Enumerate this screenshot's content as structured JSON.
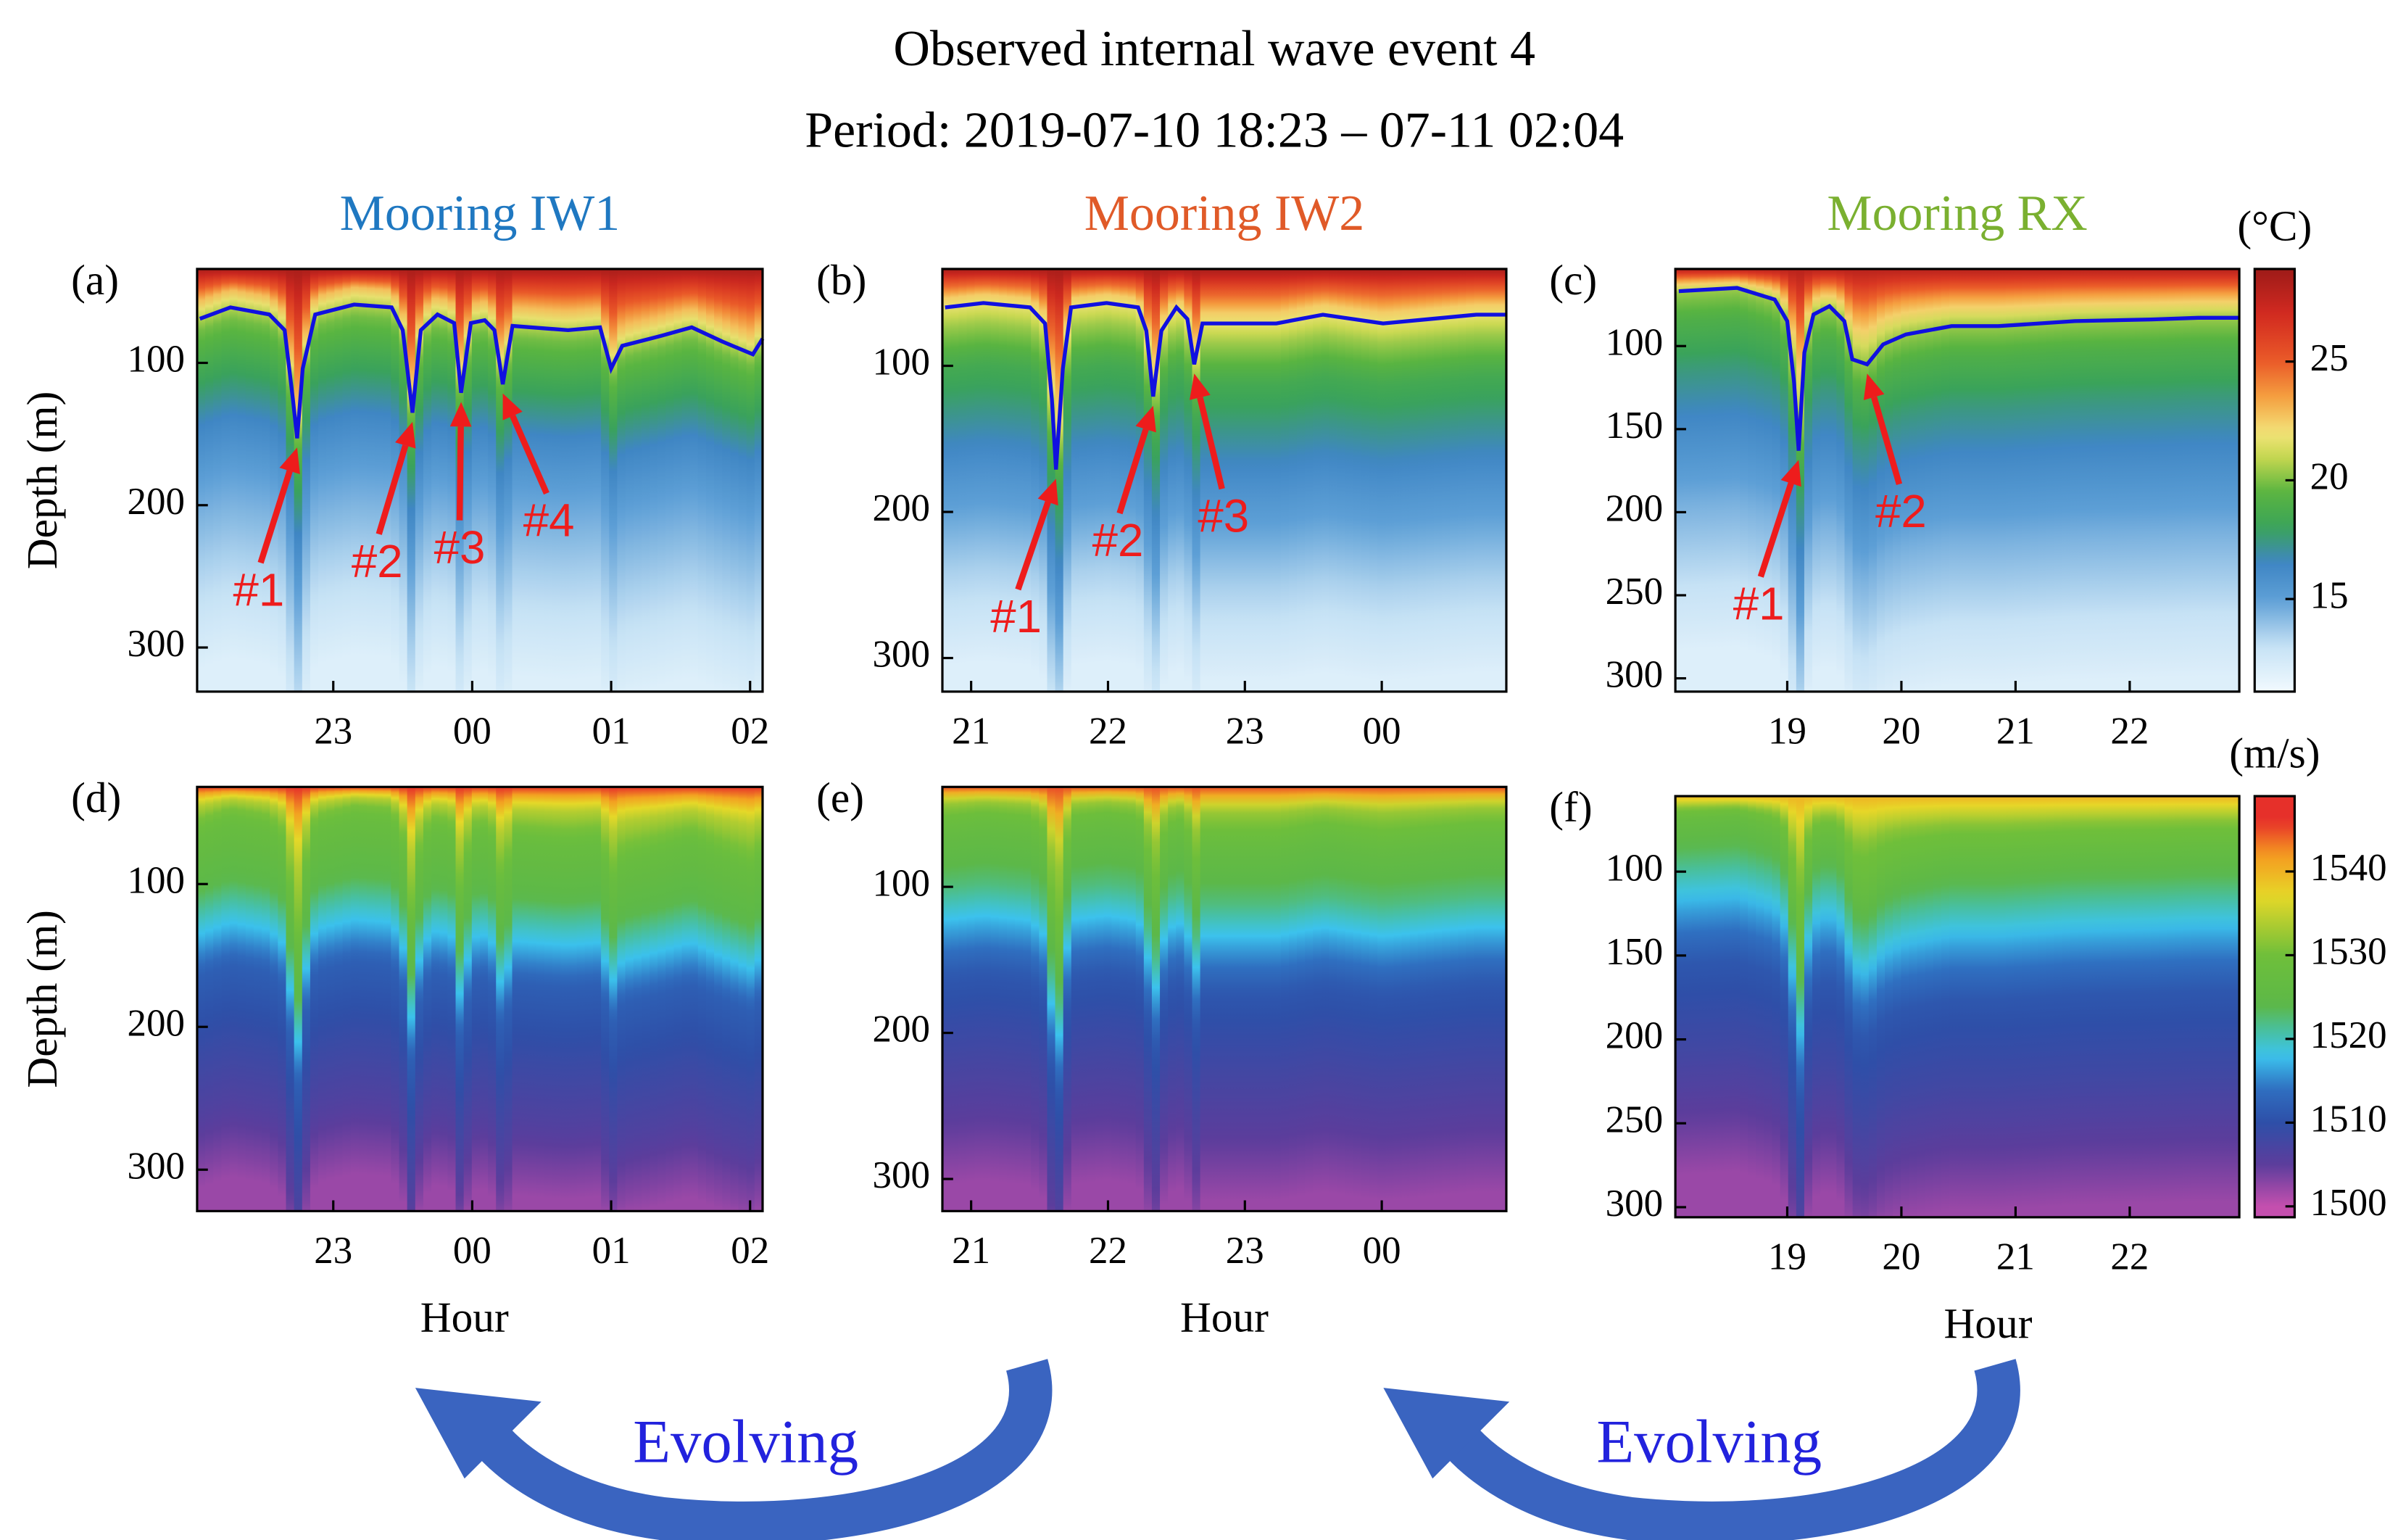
{
  "title": "Observed internal wave event 4",
  "subtitle": "Period: 2019-07-10 18:23 – 07-11 02:04",
  "evolving": [
    "Evolving",
    "Evolving"
  ],
  "chart_data": [
    {
      "type": "heatmap",
      "panel": "(a)",
      "column_title": "Mooring IW1",
      "title_color": "#1f78c1",
      "ylabel": "Depth (m)",
      "xlim": [
        22.02,
        26.09
      ],
      "xticks": [
        23,
        {
          "value": 24,
          "label": "00"
        },
        {
          "value": 25,
          "label": "01"
        },
        {
          "value": 26,
          "label": "02"
        }
      ],
      "ylim": [
        34,
        331
      ],
      "y_reversed": true,
      "yticks": [
        100,
        200,
        300
      ],
      "colormap": "temperature",
      "profile": {
        "depth": [
          34,
          50,
          70,
          90,
          120,
          160,
          200,
          260,
          331
        ],
        "values": [
          28.5,
          26,
          23,
          20,
          18.5,
          16.5,
          15,
          13.5,
          12
        ]
      },
      "isotherm": {
        "color": "#1010e0",
        "x": [
          22.04,
          22.26,
          22.54,
          22.65,
          22.71,
          22.74,
          22.78,
          22.87,
          23.15,
          23.42,
          23.5,
          23.57,
          23.63,
          23.75,
          23.87,
          23.92,
          23.99,
          24.09,
          24.16,
          24.22,
          24.29,
          24.42,
          24.69,
          24.92,
          25.0,
          25.08,
          25.36,
          25.58,
          25.8,
          26.02,
          26.09
        ],
        "y": [
          69,
          61,
          66,
          77,
          126,
          153,
          104,
          66,
          59,
          61,
          77,
          135,
          77,
          66,
          72,
          121,
          72,
          70,
          77,
          115,
          74,
          75,
          77,
          75,
          104,
          88,
          81,
          75,
          85,
          94,
          83
        ]
      },
      "annotations": [
        {
          "text": "#1",
          "x": 22.74,
          "y": 153
        },
        {
          "text": "#2",
          "x": 23.57,
          "y": 135
        },
        {
          "text": "#3",
          "x": 23.92,
          "y": 121
        },
        {
          "text": "#4",
          "x": 24.22,
          "y": 115
        }
      ]
    },
    {
      "type": "heatmap",
      "panel": "(b)",
      "column_title": "Mooring IW2",
      "title_color": "#e05a28",
      "xlim": [
        20.79,
        24.91
      ],
      "xticks": [
        21,
        22,
        23,
        {
          "value": 24,
          "label": "00"
        }
      ],
      "ylim": [
        33.7,
        323
      ],
      "y_reversed": true,
      "yticks": [
        100,
        200,
        300
      ],
      "colormap": "temperature",
      "profile": {
        "depth": [
          34,
          50,
          70,
          90,
          120,
          160,
          200,
          260,
          323
        ],
        "values": [
          28.5,
          25.5,
          22.5,
          20.5,
          18.5,
          17,
          15.5,
          13.5,
          12
        ]
      },
      "isotherm": {
        "color": "#1010e0",
        "x": [
          20.81,
          21.09,
          21.43,
          21.54,
          21.59,
          21.62,
          21.67,
          21.73,
          21.99,
          22.22,
          22.28,
          22.33,
          22.39,
          22.5,
          22.58,
          22.63,
          22.69,
          22.89,
          23.23,
          23.57,
          24.01,
          24.35,
          24.69,
          24.91
        ],
        "y": [
          60,
          57,
          60,
          71,
          123,
          171,
          102,
          60,
          57,
          60,
          76,
          121,
          76,
          60,
          68,
          99,
          71,
          71,
          71,
          65,
          71,
          68,
          65,
          65
        ]
      },
      "annotations": [
        {
          "text": "#1",
          "x": 21.62,
          "y": 171
        },
        {
          "text": "#2",
          "x": 22.33,
          "y": 121
        },
        {
          "text": "#3",
          "x": 22.63,
          "y": 99
        }
      ]
    },
    {
      "type": "heatmap",
      "panel": "(c)",
      "column_title": "Mooring RX",
      "title_color": "#7ab030",
      "xlim": [
        18.02,
        22.96
      ],
      "xticks": [
        19,
        20,
        21,
        22
      ],
      "ylim": [
        53.6,
        308
      ],
      "y_reversed": true,
      "yticks": [
        100,
        150,
        200,
        250,
        300
      ],
      "colormap": "temperature",
      "profile": {
        "depth": [
          54,
          70,
          90,
          110,
          140,
          180,
          220,
          270,
          308
        ],
        "values": [
          28,
          24,
          20.5,
          19,
          17.5,
          16,
          14.5,
          13,
          12
        ]
      },
      "isotherm": {
        "color": "#1010e0",
        "x": [
          18.05,
          18.56,
          18.89,
          19.0,
          19.06,
          19.1,
          19.15,
          19.23,
          19.37,
          19.5,
          19.57,
          19.7,
          19.84,
          20.04,
          20.44,
          20.85,
          21.52,
          22.19,
          22.6,
          22.96
        ],
        "y": [
          67,
          65,
          72,
          85,
          122,
          163,
          104,
          81,
          76,
          85,
          108,
          111,
          99,
          93,
          88,
          88,
          85,
          84,
          83,
          83
        ]
      },
      "annotations": [
        {
          "text": "#1",
          "x": 19.1,
          "y": 163
        },
        {
          "text": "#2",
          "x": 19.7,
          "y": 111
        }
      ],
      "colorbar": {
        "label": "(°C)",
        "clim": [
          11.1,
          28.9
        ],
        "ticks": [
          15,
          20,
          25
        ]
      }
    },
    {
      "type": "heatmap",
      "panel": "(d)",
      "ylabel": "Depth (m)",
      "xlabel": "Hour",
      "xlim": [
        22.02,
        26.09
      ],
      "xticks": [
        23,
        {
          "value": 24,
          "label": "00"
        },
        {
          "value": 25,
          "label": "01"
        },
        {
          "value": 26,
          "label": "02"
        }
      ],
      "ylim": [
        32,
        329
      ],
      "y_reversed": true,
      "yticks": [
        100,
        200,
        300
      ],
      "colormap": "sound",
      "profile": {
        "depth": [
          32,
          50,
          80,
          120,
          150,
          180,
          230,
          280,
          329
        ],
        "values": [
          1546,
          1535,
          1528,
          1524,
          1518,
          1512,
          1509,
          1506,
          1502
        ]
      }
    },
    {
      "type": "heatmap",
      "panel": "(e)",
      "xlabel": "Hour",
      "xlim": [
        20.79,
        24.91
      ],
      "xticks": [
        21,
        22,
        23,
        {
          "value": 24,
          "label": "00"
        }
      ],
      "ylim": [
        31.6,
        322
      ],
      "y_reversed": true,
      "yticks": [
        100,
        200,
        300
      ],
      "colormap": "sound",
      "profile": {
        "depth": [
          32,
          50,
          80,
          120,
          150,
          180,
          230,
          280,
          322
        ],
        "values": [
          1545,
          1533,
          1527,
          1522,
          1516,
          1511,
          1508,
          1505,
          1502
        ]
      }
    },
    {
      "type": "heatmap",
      "panel": "(f)",
      "xlabel": "Hour",
      "xlim": [
        18.02,
        22.96
      ],
      "xticks": [
        19,
        20,
        21,
        22
      ],
      "ylim": [
        55,
        306
      ],
      "y_reversed": true,
      "yticks": [
        100,
        150,
        200,
        250,
        300
      ],
      "colormap": "sound",
      "profile": {
        "depth": [
          55,
          75,
          100,
          125,
          150,
          180,
          230,
          270,
          306
        ],
        "values": [
          1540,
          1531,
          1526,
          1521,
          1516,
          1511,
          1508,
          1505,
          1502
        ]
      },
      "colorbar": {
        "label": "(m/s)",
        "clim": [
          1498.7,
          1549
        ],
        "ticks": [
          1500,
          1510,
          1520,
          1530,
          1540
        ]
      }
    }
  ],
  "colormaps": {
    "temperature": [
      [
        11,
        "#f4fbff"
      ],
      [
        13,
        "#c6e2f5"
      ],
      [
        15,
        "#5d9fd6"
      ],
      [
        16.5,
        "#3f86c4"
      ],
      [
        18,
        "#3aa35a"
      ],
      [
        19.5,
        "#5ab540"
      ],
      [
        21,
        "#c8d850"
      ],
      [
        22,
        "#f3e37a"
      ],
      [
        23.5,
        "#f5a040"
      ],
      [
        25,
        "#ea5a28"
      ],
      [
        27,
        "#d22a20"
      ],
      [
        29,
        "#9b1a18"
      ]
    ],
    "sound": [
      [
        1500,
        "#c44fae"
      ],
      [
        1505,
        "#5c3d9c"
      ],
      [
        1510,
        "#2e4fa8"
      ],
      [
        1514,
        "#2f6fc0"
      ],
      [
        1518,
        "#3cc4ee"
      ],
      [
        1521,
        "#48c0a0"
      ],
      [
        1524,
        "#5cb848"
      ],
      [
        1530,
        "#6fbf3a"
      ],
      [
        1537,
        "#e6d828"
      ],
      [
        1542,
        "#f59a20"
      ],
      [
        1546,
        "#e6302a"
      ]
    ]
  }
}
